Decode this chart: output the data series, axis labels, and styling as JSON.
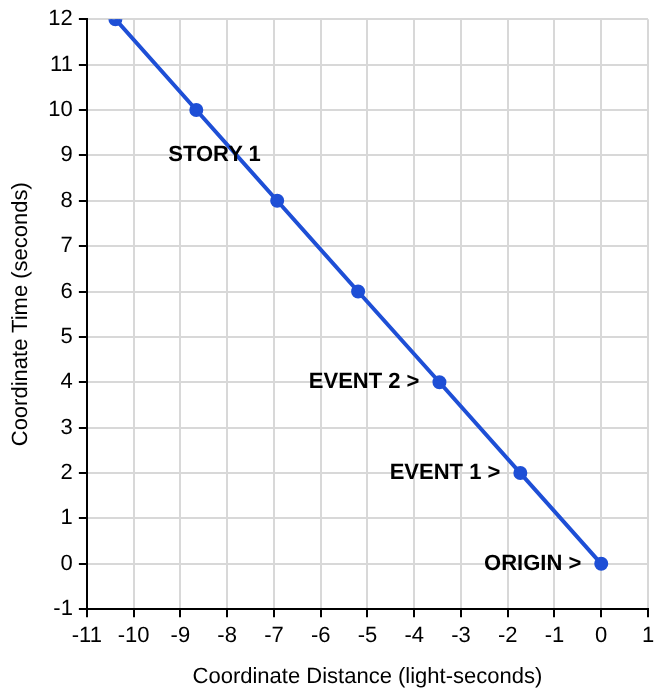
{
  "chart_data": {
    "type": "line",
    "xlabel": "Coordinate Distance (light-seconds)",
    "ylabel": "Coordinate Time (seconds)",
    "x": [
      0,
      -1.73,
      -3.46,
      -5.2,
      -6.93,
      -8.66,
      -10.39
    ],
    "series": [
      {
        "color": "#1e4fd6",
        "values": [
          0,
          2,
          4,
          6,
          8,
          10,
          12
        ]
      }
    ],
    "xlim": [
      -11,
      1
    ],
    "xticks": [
      -11,
      -10,
      -9,
      -8,
      -7,
      -6,
      -5,
      -4,
      -3,
      -2,
      -1,
      0,
      1
    ],
    "ylim": [
      -1,
      12
    ],
    "yticks": [
      -1,
      0,
      1,
      2,
      3,
      4,
      5,
      6,
      7,
      8,
      9,
      10,
      11,
      12
    ],
    "grid": true,
    "legend": false,
    "marker": "circle",
    "line_style": "solid",
    "annotations": [
      {
        "text": "ORIGIN >",
        "x": 0,
        "y": 0
      },
      {
        "text": "EVENT 1 >",
        "x": -1.73,
        "y": 2
      },
      {
        "text": "EVENT 2 >",
        "x": -3.46,
        "y": 4
      },
      "STORY 1"
    ]
  }
}
